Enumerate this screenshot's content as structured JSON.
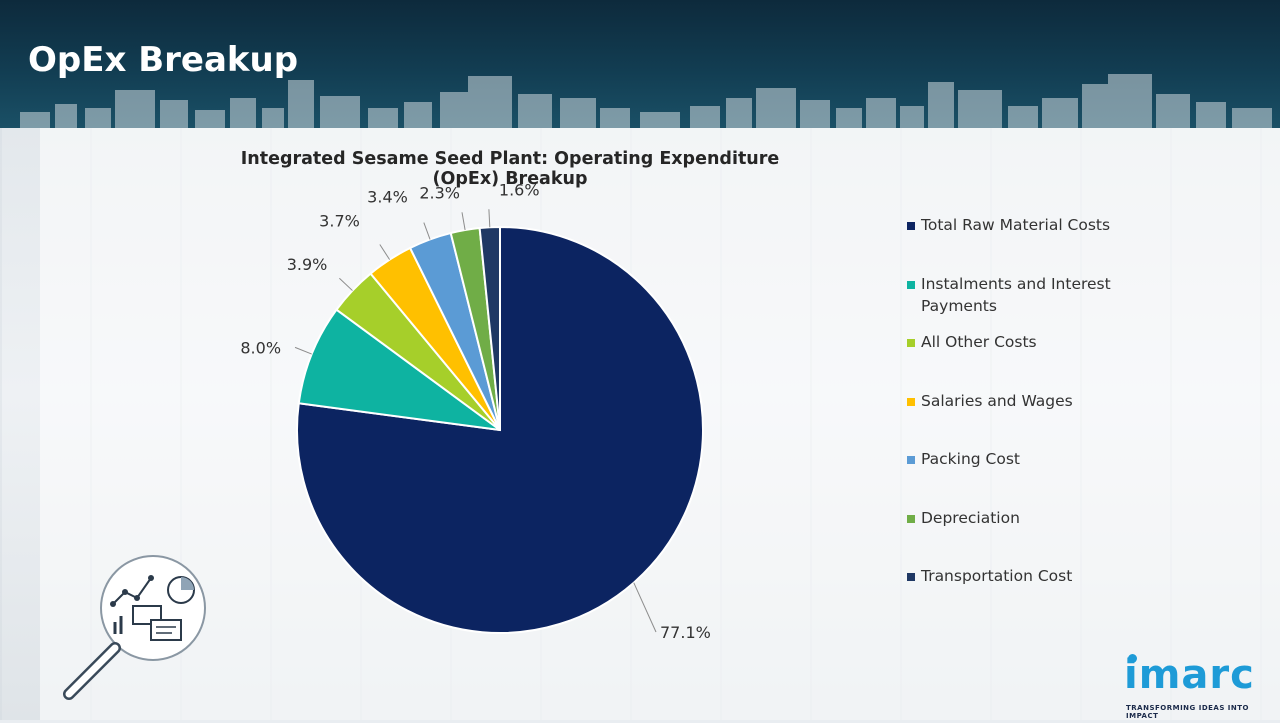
{
  "header": {
    "title": "OpEx Breakup"
  },
  "chart_data": {
    "type": "pie",
    "title": "Integrated Sesame Seed Plant: Operating Expenditure (OpEx) Breakup",
    "categories": [
      "Total Raw Material Costs",
      "Instalments and Interest Payments",
      "All Other Costs",
      "Salaries and Wages",
      "Packing Cost",
      "Depreciation",
      "Transportation Cost"
    ],
    "values": [
      77.1,
      8.0,
      3.9,
      3.7,
      3.4,
      2.3,
      1.6
    ],
    "labels": [
      "77.1%",
      "8.0%",
      "3.9%",
      "3.7%",
      "3.4%",
      "2.3%",
      "1.6%"
    ],
    "colors": [
      "#0c2461",
      "#0eb3a1",
      "#a6cf2a",
      "#ffc000",
      "#5b9bd5",
      "#70ad47",
      "#1f3864"
    ],
    "legend_position": "right",
    "legend_lines": [
      [
        "Total Raw Material Costs"
      ],
      [
        "Instalments and Interest",
        "Payments"
      ],
      [
        "All Other Costs"
      ],
      [
        "Salaries and Wages"
      ],
      [
        "Packing Cost"
      ],
      [
        "Depreciation"
      ],
      [
        "Transportation Cost"
      ]
    ]
  },
  "brand": {
    "logo_text": "imarc",
    "tagline": "TRANSFORMING IDEAS INTO IMPACT",
    "logo_color": "#1e9bd7"
  },
  "icons": {
    "illustration": "magnifier-analytics-icon"
  }
}
